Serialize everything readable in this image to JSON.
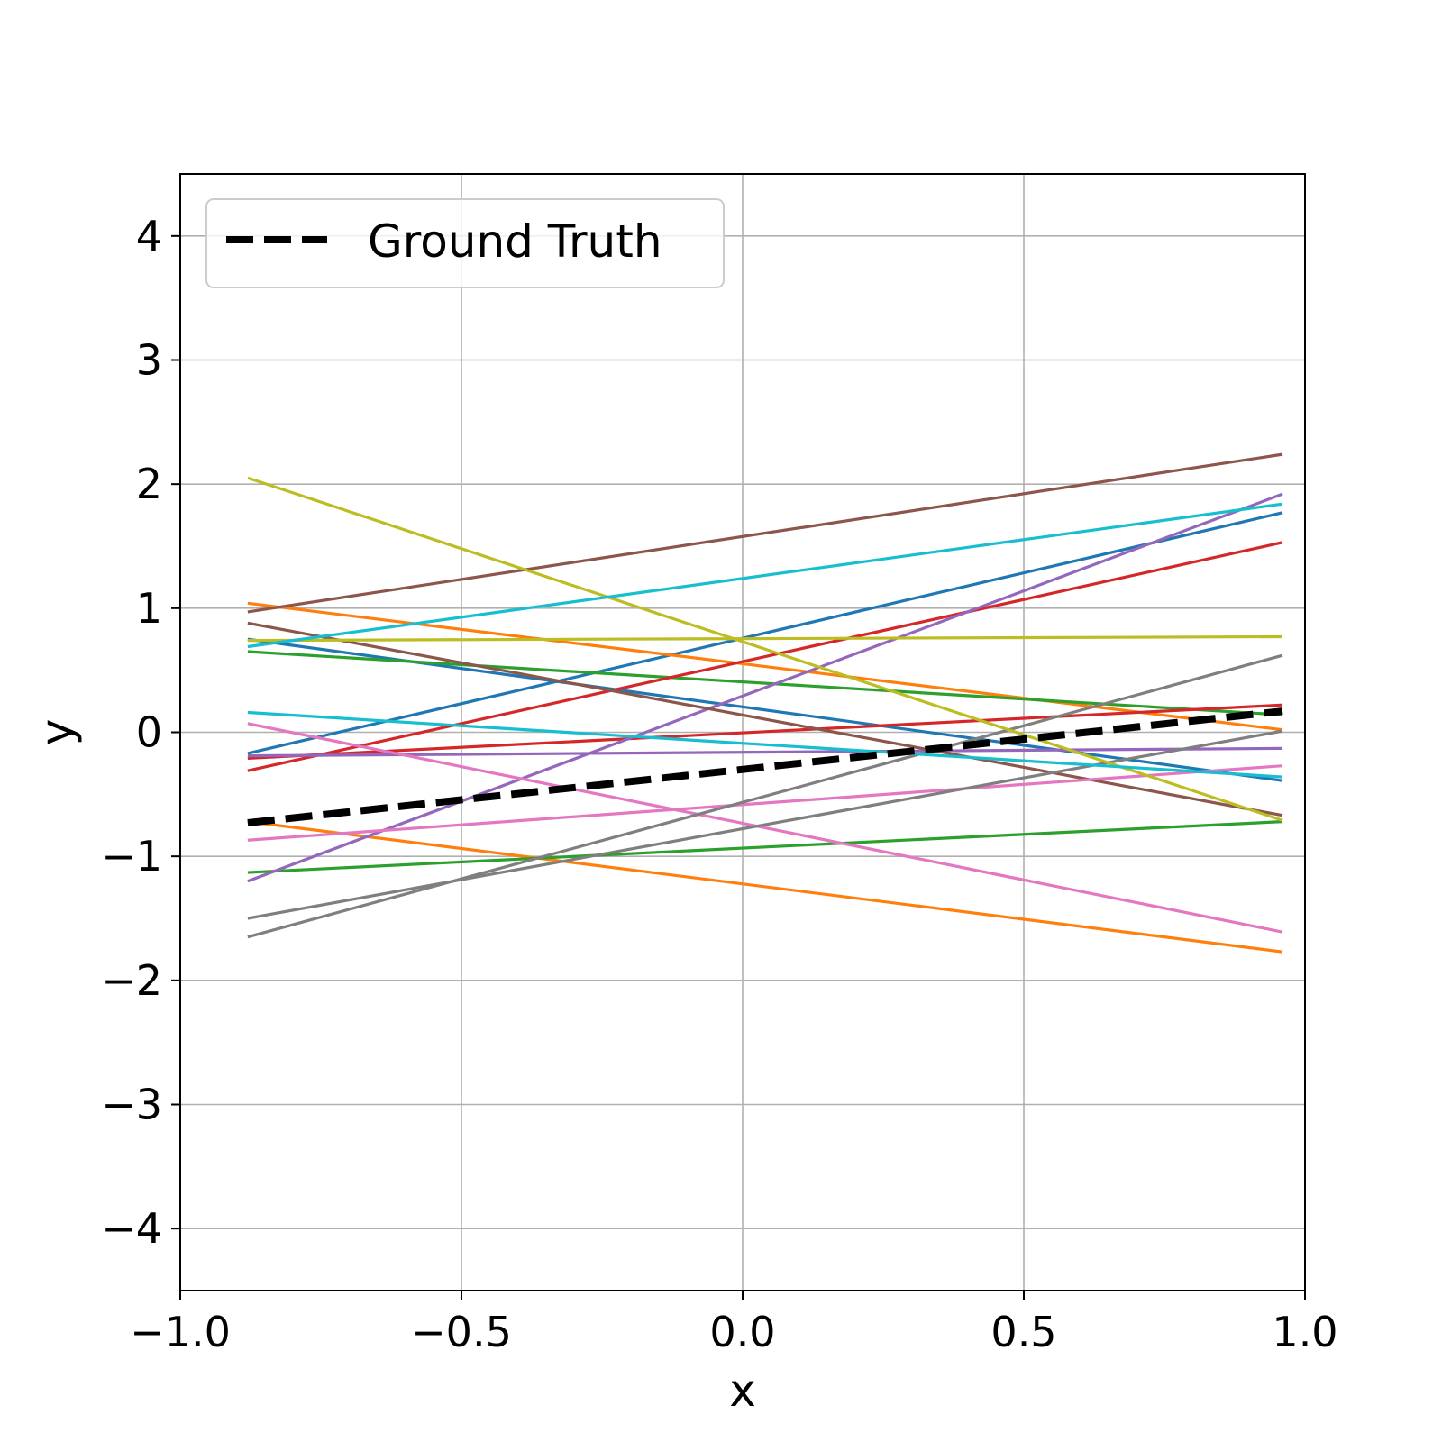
{
  "chart_data": {
    "type": "line",
    "title": "",
    "xlabel": "x",
    "ylabel": "y",
    "xlim": [
      -1.0,
      1.0
    ],
    "ylim": [
      -4.5,
      4.5
    ],
    "grid": true,
    "legend_position": "top-left",
    "xticks": [
      -1.0,
      -0.5,
      0.0,
      0.5,
      1.0
    ],
    "xtick_labels": [
      "−1.0",
      "−0.5",
      "0.0",
      "0.5",
      "1.0"
    ],
    "yticks": [
      -4,
      -3,
      -2,
      -1,
      0,
      1,
      2,
      3,
      4
    ],
    "ytick_labels": [
      "−4",
      "−3",
      "−2",
      "−1",
      "0",
      "1",
      "2",
      "3",
      "4"
    ],
    "series": [
      {
        "x": [
          -0.88,
          0.96
        ],
        "y": [
          -0.17,
          1.77
        ],
        "color": "#1f77b4"
      },
      {
        "x": [
          -0.88,
          0.96
        ],
        "y": [
          0.75,
          -0.39
        ],
        "color": "#1f77b4"
      },
      {
        "x": [
          -0.88,
          0.96
        ],
        "y": [
          1.04,
          0.02
        ],
        "color": "#ff7f0e"
      },
      {
        "x": [
          -0.88,
          0.96
        ],
        "y": [
          -0.72,
          -1.77
        ],
        "color": "#ff7f0e"
      },
      {
        "x": [
          -0.88,
          0.96
        ],
        "y": [
          0.65,
          0.14
        ],
        "color": "#2ca02c"
      },
      {
        "x": [
          -0.88,
          0.96
        ],
        "y": [
          -1.13,
          -0.72
        ],
        "color": "#2ca02c"
      },
      {
        "x": [
          -0.88,
          0.96
        ],
        "y": [
          -0.31,
          1.53
        ],
        "color": "#d62728"
      },
      {
        "x": [
          -0.88,
          0.96
        ],
        "y": [
          -0.21,
          0.22
        ],
        "color": "#d62728"
      },
      {
        "x": [
          -0.88,
          0.96
        ],
        "y": [
          -1.2,
          1.92
        ],
        "color": "#9467bd"
      },
      {
        "x": [
          -0.88,
          0.96
        ],
        "y": [
          -0.19,
          -0.13
        ],
        "color": "#9467bd"
      },
      {
        "x": [
          -0.88,
          0.96
        ],
        "y": [
          0.97,
          2.24
        ],
        "color": "#8c564b"
      },
      {
        "x": [
          -0.88,
          0.96
        ],
        "y": [
          0.88,
          -0.67
        ],
        "color": "#8c564b"
      },
      {
        "x": [
          -0.88,
          0.96
        ],
        "y": [
          0.07,
          -1.61
        ],
        "color": "#e377c2"
      },
      {
        "x": [
          -0.88,
          0.96
        ],
        "y": [
          -0.87,
          -0.27
        ],
        "color": "#e377c2"
      },
      {
        "x": [
          -0.88,
          0.96
        ],
        "y": [
          -1.65,
          0.62
        ],
        "color": "#7f7f7f"
      },
      {
        "x": [
          -0.88,
          0.96
        ],
        "y": [
          -1.5,
          0.01
        ],
        "color": "#7f7f7f"
      },
      {
        "x": [
          -0.88,
          0.96
        ],
        "y": [
          2.05,
          -0.71
        ],
        "color": "#bcbd22"
      },
      {
        "x": [
          -0.88,
          0.96
        ],
        "y": [
          0.74,
          0.77
        ],
        "color": "#bcbd22"
      },
      {
        "x": [
          -0.88,
          0.96
        ],
        "y": [
          0.69,
          1.84
        ],
        "color": "#17becf"
      },
      {
        "x": [
          -0.88,
          0.96
        ],
        "y": [
          0.16,
          -0.36
        ],
        "color": "#17becf"
      },
      {
        "name": "Ground Truth",
        "x": [
          -0.88,
          0.96
        ],
        "y": [
          -0.73,
          0.17
        ],
        "color": "#000000",
        "style": "dashed"
      }
    ]
  }
}
